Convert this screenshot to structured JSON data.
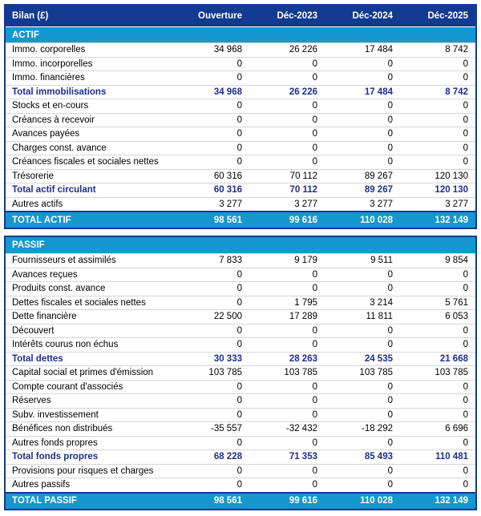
{
  "header": {
    "title": "Bilan (£)",
    "columns": [
      "Ouverture",
      "Déc-2023",
      "Déc-2024",
      "Déc-2025"
    ]
  },
  "colors": {
    "navy": "#133a91",
    "cyan": "#1697ce",
    "subtotal_text": "#1f2e8f",
    "row_separator": "#d6d6d6"
  },
  "sections": [
    {
      "name": "ACTIF",
      "rows": [
        {
          "label": "Immo. corporelles",
          "bold": false,
          "values": [
            "34 968",
            "26 226",
            "17 484",
            "8 742"
          ]
        },
        {
          "label": "Immo. incorporelles",
          "bold": false,
          "values": [
            "0",
            "0",
            "0",
            "0"
          ]
        },
        {
          "label": "Immo. financières",
          "bold": false,
          "values": [
            "0",
            "0",
            "0",
            "0"
          ]
        },
        {
          "label": "Total immobilisations",
          "bold": true,
          "values": [
            "34 968",
            "26 226",
            "17 484",
            "8 742"
          ]
        },
        {
          "label": "Stocks et en-cours",
          "bold": false,
          "values": [
            "0",
            "0",
            "0",
            "0"
          ]
        },
        {
          "label": "Créances à recevoir",
          "bold": false,
          "values": [
            "0",
            "0",
            "0",
            "0"
          ]
        },
        {
          "label": "Avances payées",
          "bold": false,
          "values": [
            "0",
            "0",
            "0",
            "0"
          ]
        },
        {
          "label": "Charges const. avance",
          "bold": false,
          "values": [
            "0",
            "0",
            "0",
            "0"
          ]
        },
        {
          "label": "Créances fiscales et sociales nettes",
          "bold": false,
          "values": [
            "0",
            "0",
            "0",
            "0"
          ]
        },
        {
          "label": "Trésorerie",
          "bold": false,
          "values": [
            "60 316",
            "70 112",
            "89 267",
            "120 130"
          ]
        },
        {
          "label": "Total actif circulant",
          "bold": true,
          "values": [
            "60 316",
            "70 112",
            "89 267",
            "120 130"
          ]
        },
        {
          "label": "Autres actifs",
          "bold": false,
          "values": [
            "3 277",
            "3 277",
            "3 277",
            "3 277"
          ]
        }
      ],
      "total": {
        "label": "TOTAL ACTIF",
        "values": [
          "98 561",
          "99 616",
          "110 028",
          "132 149"
        ]
      }
    },
    {
      "name": "PASSIF",
      "rows": [
        {
          "label": "Fournisseurs et assimilés",
          "bold": false,
          "values": [
            "7 833",
            "9 179",
            "9 511",
            "9 854"
          ]
        },
        {
          "label": "Avances reçues",
          "bold": false,
          "values": [
            "0",
            "0",
            "0",
            "0"
          ]
        },
        {
          "label": "Produits const. avance",
          "bold": false,
          "values": [
            "0",
            "0",
            "0",
            "0"
          ]
        },
        {
          "label": "Dettes fiscales et sociales nettes",
          "bold": false,
          "values": [
            "0",
            "1 795",
            "3 214",
            "5 761"
          ]
        },
        {
          "label": "Dette financière",
          "bold": false,
          "values": [
            "22 500",
            "17 289",
            "11 811",
            "6 053"
          ]
        },
        {
          "label": "Découvert",
          "bold": false,
          "values": [
            "0",
            "0",
            "0",
            "0"
          ]
        },
        {
          "label": "Intérêts courus non échus",
          "bold": false,
          "values": [
            "0",
            "0",
            "0",
            "0"
          ]
        },
        {
          "label": "Total dettes",
          "bold": true,
          "values": [
            "30 333",
            "28 263",
            "24 535",
            "21 668"
          ]
        },
        {
          "label": "Capital social et primes d'émission",
          "bold": false,
          "values": [
            "103 785",
            "103 785",
            "103 785",
            "103 785"
          ]
        },
        {
          "label": "Compte courant d'associés",
          "bold": false,
          "values": [
            "0",
            "0",
            "0",
            "0"
          ]
        },
        {
          "label": "Réserves",
          "bold": false,
          "values": [
            "0",
            "0",
            "0",
            "0"
          ]
        },
        {
          "label": "Subv. investissement",
          "bold": false,
          "values": [
            "0",
            "0",
            "0",
            "0"
          ]
        },
        {
          "label": "Bénéfices non distribués",
          "bold": false,
          "values": [
            "-35 557",
            "-32 432",
            "-18 292",
            "6 696"
          ]
        },
        {
          "label": "Autres fonds propres",
          "bold": false,
          "values": [
            "0",
            "0",
            "0",
            "0"
          ]
        },
        {
          "label": "Total fonds propres",
          "bold": true,
          "values": [
            "68 228",
            "71 353",
            "85 493",
            "110 481"
          ]
        },
        {
          "label": "Provisions pour risques et charges",
          "bold": false,
          "values": [
            "0",
            "0",
            "0",
            "0"
          ]
        },
        {
          "label": "Autres passifs",
          "bold": false,
          "values": [
            "0",
            "0",
            "0",
            "0"
          ]
        }
      ],
      "total": {
        "label": "TOTAL PASSIF",
        "values": [
          "98 561",
          "99 616",
          "110 028",
          "132 149"
        ]
      }
    }
  ]
}
